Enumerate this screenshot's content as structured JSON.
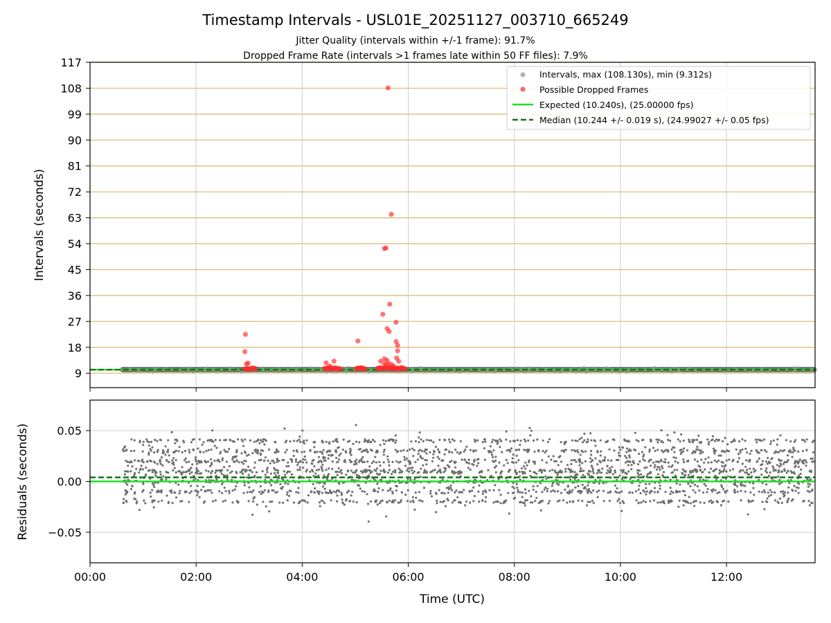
{
  "chart_data": [
    {
      "type": "scatter",
      "panel": "top",
      "title": "Timestamp Intervals - USL01E_20251127_003710_665249",
      "subtitle_lines": [
        "Jitter Quality (intervals within +/-1 frame): 91.7%",
        "Dropped Frame Rate (intervals >1 frames late within 50 FF files): 7.9%"
      ],
      "xlabel": "",
      "ylabel": "Intervals (seconds)",
      "xlim_hours": [
        0,
        13.67
      ],
      "ylim": [
        4,
        117
      ],
      "y_ticks": [
        "9",
        "18",
        "27",
        "36",
        "45",
        "54",
        "63",
        "72",
        "81",
        "90",
        "99",
        "108",
        "117"
      ],
      "y_tick_values": [
        9,
        18,
        27,
        36,
        45,
        54,
        63,
        72,
        81,
        90,
        99,
        108,
        117
      ],
      "x_tick_values": [
        0,
        2,
        4,
        6,
        8,
        10,
        12
      ],
      "grid": "on",
      "legend_position": "top-right",
      "legend": [
        {
          "label": "Intervals, max (108.130s), min (9.312s)",
          "kind": "marker",
          "color": "#a0a0a0"
        },
        {
          "label": "Possible Dropped Frames",
          "kind": "marker",
          "color": "#ff4d4d"
        },
        {
          "label": "Expected (10.240s), (25.00000 fps)",
          "kind": "line",
          "color": "#22dd22"
        },
        {
          "label": "Median (10.244 +/- 0.019 s), (24.99027 +/- 0.05 fps)",
          "kind": "dashed",
          "color": "#117711"
        }
      ],
      "series": [
        {
          "name": "Intervals",
          "x_range_hours": [
            0.62,
            13.65
          ],
          "y_approx": 10.24,
          "color": "#808080"
        },
        {
          "name": "Expected",
          "y": 10.24,
          "color": "#22dd22"
        },
        {
          "name": "Median",
          "y": 10.244,
          "color": "#117711"
        },
        {
          "name": "Possible Dropped Frames",
          "color": "#ff3333",
          "points": [
            [
              2.93,
              22.5
            ],
            [
              2.92,
              16.5
            ],
            [
              2.95,
              12.2
            ],
            [
              2.98,
              12.5
            ],
            [
              5.62,
              108.1
            ],
            [
              5.68,
              64.2
            ],
            [
              5.55,
              52.3
            ],
            [
              5.58,
              52.5
            ],
            [
              5.65,
              33.0
            ],
            [
              5.52,
              29.5
            ],
            [
              5.77,
              26.7
            ],
            [
              5.6,
              24.5
            ],
            [
              5.64,
              23.5
            ],
            [
              5.05,
              20.2
            ],
            [
              5.77,
              20.0
            ],
            [
              5.8,
              18.7
            ],
            [
              5.8,
              16.8
            ],
            [
              5.78,
              14.3
            ],
            [
              5.82,
              13.2
            ],
            [
              5.48,
              13.2
            ],
            [
              5.55,
              14.0
            ],
            [
              5.6,
              13.5
            ],
            [
              4.45,
              12.6
            ],
            [
              4.6,
              13.2
            ],
            [
              5.55,
              12.2
            ],
            [
              5.68,
              12.0
            ],
            [
              5.72,
              11.5
            ],
            [
              4.52,
              11.5
            ],
            [
              5.58,
              11.8
            ],
            [
              5.63,
              12.4
            ]
          ],
          "clusters": [
            [
              2.92,
              3.12
            ],
            [
              4.42,
              4.73
            ],
            [
              5.02,
              5.18
            ],
            [
              5.42,
              5.95
            ]
          ],
          "cluster_y": 10.7
        }
      ]
    },
    {
      "type": "scatter",
      "panel": "bottom",
      "xlabel": "Time (UTC)",
      "ylabel": "Residuals (seconds)",
      "xlim_hours": [
        0,
        13.67
      ],
      "ylim": [
        -0.08,
        0.08
      ],
      "x_ticks": [
        "00:00",
        "02:00",
        "04:00",
        "06:00",
        "08:00",
        "10:00",
        "12:00"
      ],
      "x_tick_values": [
        0,
        2,
        4,
        6,
        8,
        10,
        12
      ],
      "y_ticks": [
        "0.05",
        "0.00",
        "−0.05"
      ],
      "y_tick_values": [
        0.05,
        0,
        -0.05
      ],
      "grid": "on",
      "series": [
        {
          "name": "Residuals",
          "x_range_hours": [
            0.62,
            13.65
          ],
          "y_spread": [
            -0.04,
            0.06
          ],
          "color": "#707070"
        },
        {
          "name": "Expected",
          "y": 0.0,
          "color": "#22dd22"
        },
        {
          "name": "Median",
          "y": 0.004,
          "color": "#117711"
        }
      ]
    }
  ]
}
